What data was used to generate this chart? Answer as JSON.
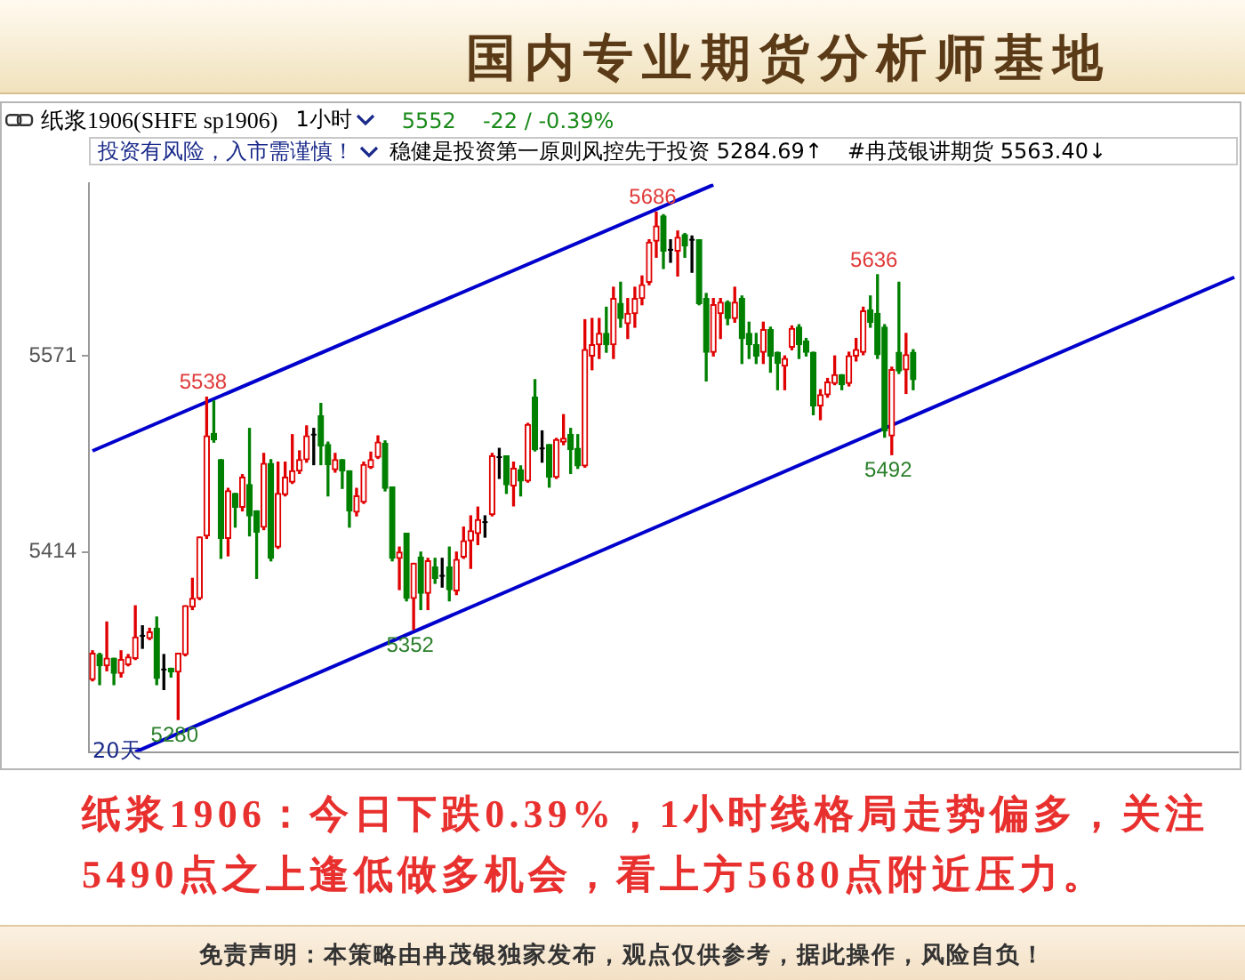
{
  "chart_data": {
    "type": "candlestick",
    "title": "国内专业期货分析师基地",
    "subtitle": "纸浆1906(SHFE sp1906)",
    "categories": [
      null,
      null,
      null,
      null,
      null,
      null,
      null,
      null,
      null,
      null,
      null,
      null,
      null,
      null,
      null,
      null,
      null,
      null,
      null,
      null,
      null,
      null,
      null,
      null,
      null,
      null,
      null,
      null,
      null,
      null,
      null,
      null,
      null,
      null,
      null,
      null,
      null,
      null,
      null,
      null,
      null,
      null,
      null,
      null,
      null,
      null,
      null,
      null,
      null,
      null,
      null,
      null,
      null,
      null,
      null,
      null,
      null,
      null,
      null,
      null,
      null,
      null,
      null,
      null,
      null,
      null,
      null,
      null,
      null,
      null,
      null,
      null,
      null,
      null,
      null,
      null,
      null,
      null,
      null,
      null,
      null,
      null,
      null,
      null,
      null,
      null,
      null,
      null,
      null,
      null,
      null,
      null,
      null,
      null,
      null,
      null,
      null,
      null,
      null,
      null,
      null,
      null,
      null,
      null,
      null,
      null,
      null,
      null,
      null,
      null,
      null,
      null,
      null,
      null,
      null,
      null,
      null,
      null,
      null,
      null,
      null,
      null,
      null,
      null,
      null,
      null,
      null,
      null,
      null,
      null,
      null,
      null,
      null,
      null,
      null,
      null,
      null,
      null,
      null,
      null,
      null,
      null,
      null,
      null,
      null,
      null,
      null,
      null,
      null,
      null,
      null,
      null,
      null,
      null,
      null,
      null,
      null,
      null,
      null,
      null,
      null
    ],
    "ohlc": [
      [
        5312,
        5335,
        5311,
        5333
      ],
      [
        5332,
        5333,
        5308,
        5323
      ],
      [
        5323,
        5358,
        5319,
        5329
      ],
      [
        5329,
        5329,
        5308,
        5317
      ],
      [
        5317,
        5335,
        5314,
        5328
      ],
      [
        5324,
        5332,
        5323,
        5330
      ],
      [
        5329,
        5371,
        5328,
        5346
      ],
      [
        5347,
        5355,
        5337,
        5347
      ],
      [
        5345,
        5353,
        5344,
        5350
      ],
      [
        5353,
        5362,
        5308,
        5313
      ],
      [
        5320,
        5332,
        5304,
        5320
      ],
      [
        5321,
        5321,
        5314,
        5318
      ],
      [
        5318,
        5333,
        5280,
        5333
      ],
      [
        5332,
        5371,
        5331,
        5371
      ],
      [
        5370,
        5393,
        5368,
        5377
      ],
      [
        5377,
        5426,
        5376,
        5426
      ],
      [
        5427,
        5538,
        5425,
        5507
      ],
      [
        5509,
        5535,
        5502,
        5504
      ],
      [
        5488,
        5488,
        5409,
        5425
      ],
      [
        5425,
        5465,
        5411,
        5463
      ],
      [
        5461,
        5461,
        5434,
        5450
      ],
      [
        5450,
        5476,
        5447,
        5474
      ],
      [
        5468,
        5513,
        5427,
        5443
      ],
      [
        5447,
        5447,
        5393,
        5430
      ],
      [
        5434,
        5493,
        5432,
        5485
      ],
      [
        5485,
        5488,
        5407,
        5409
      ],
      [
        5418,
        5486,
        5417,
        5461
      ],
      [
        5460,
        5486,
        5459,
        5474
      ],
      [
        5470,
        5508,
        5469,
        5479
      ],
      [
        5479,
        5495,
        5477,
        5488
      ],
      [
        5488,
        5515,
        5486,
        5507
      ],
      [
        5508,
        5513,
        5484,
        5508
      ],
      [
        5523,
        5533,
        5484,
        5499
      ],
      [
        5500,
        5502,
        5459,
        5484
      ],
      [
        5480,
        5493,
        5478,
        5488
      ],
      [
        5488,
        5488,
        5465,
        5479
      ],
      [
        5479,
        5479,
        5434,
        5447
      ],
      [
        5446,
        5465,
        5443,
        5459
      ],
      [
        5454,
        5486,
        5453,
        5484
      ],
      [
        5482,
        5494,
        5481,
        5488
      ],
      [
        5490,
        5507,
        5489,
        5502
      ],
      [
        5501,
        5503,
        5463,
        5465
      ],
      [
        5466,
        5466,
        5407,
        5409
      ],
      [
        5409,
        5418,
        5384,
        5414
      ],
      [
        5429,
        5429,
        5375,
        5377
      ],
      [
        5377,
        5405,
        5352,
        5405
      ],
      [
        5410,
        5414,
        5368,
        5381
      ],
      [
        5381,
        5409,
        5368,
        5407
      ],
      [
        5402,
        5409,
        5389,
        5393
      ],
      [
        5395,
        5409,
        5386,
        5395
      ],
      [
        5402,
        5418,
        5375,
        5384
      ],
      [
        5383,
        5414,
        5380,
        5408
      ],
      [
        5410,
        5434,
        5409,
        5423
      ],
      [
        5423,
        5443,
        5401,
        5431
      ],
      [
        5429,
        5450,
        5420,
        5440
      ],
      [
        5438,
        5443,
        5426,
        5438
      ],
      [
        5444,
        5493,
        5443,
        5491
      ],
      [
        5490,
        5497,
        5473,
        5490
      ],
      [
        5491,
        5491,
        5461,
        5468
      ],
      [
        5467,
        5486,
        5451,
        5481
      ],
      [
        5480,
        5483,
        5459,
        5471
      ],
      [
        5471,
        5517,
        5470,
        5516
      ],
      [
        5538,
        5552,
        5495,
        5496
      ],
      [
        5497,
        5511,
        5486,
        5497
      ],
      [
        5500,
        5500,
        5466,
        5474
      ],
      [
        5474,
        5505,
        5473,
        5504
      ],
      [
        5502,
        5524,
        5500,
        5505
      ],
      [
        5508,
        5513,
        5477,
        5496
      ],
      [
        5497,
        5508,
        5481,
        5483
      ],
      [
        5483,
        5600,
        5482,
        5576
      ],
      [
        5571,
        5601,
        5560,
        5580
      ],
      [
        5580,
        5601,
        5569,
        5589
      ],
      [
        5589,
        5610,
        5574,
        5580
      ],
      [
        5580,
        5626,
        5569,
        5617
      ],
      [
        5613,
        5630,
        5594,
        5601
      ],
      [
        5597,
        5617,
        5585,
        5605
      ],
      [
        5605,
        5626,
        5594,
        5617
      ],
      [
        5617,
        5635,
        5612,
        5628
      ],
      [
        5630,
        5664,
        5628,
        5662
      ],
      [
        5663,
        5686,
        5650,
        5675
      ],
      [
        5683,
        5684,
        5641,
        5655
      ],
      [
        5656,
        5664,
        5646,
        5656
      ],
      [
        5655,
        5671,
        5635,
        5666
      ],
      [
        5668,
        5669,
        5650,
        5659
      ],
      [
        5664,
        5667,
        5638,
        5664
      ],
      [
        5664,
        5664,
        5612,
        5613
      ],
      [
        5617,
        5621,
        5551,
        5574
      ],
      [
        5574,
        5617,
        5571,
        5612
      ],
      [
        5605,
        5617,
        5585,
        5614
      ],
      [
        5614,
        5615,
        5596,
        5601
      ],
      [
        5601,
        5626,
        5598,
        5614
      ],
      [
        5617,
        5619,
        5565,
        5585
      ],
      [
        5589,
        5598,
        5569,
        5580
      ],
      [
        5580,
        5589,
        5565,
        5571
      ],
      [
        5574,
        5598,
        5565,
        5592
      ],
      [
        5592,
        5594,
        5558,
        5571
      ],
      [
        5574,
        5574,
        5544,
        5565
      ],
      [
        5563,
        5571,
        5544,
        5569
      ],
      [
        5578,
        5595,
        5576,
        5593
      ],
      [
        5594,
        5596,
        5569,
        5580
      ],
      [
        5583,
        5585,
        5571,
        5574
      ],
      [
        5574,
        5574,
        5524,
        5531
      ],
      [
        5531,
        5544,
        5520,
        5540
      ],
      [
        5540,
        5553,
        5538,
        5550
      ],
      [
        5549,
        5571,
        5548,
        5556
      ],
      [
        5556,
        5556,
        5544,
        5548
      ],
      [
        5549,
        5574,
        5547,
        5571
      ],
      [
        5571,
        5585,
        5567,
        5576
      ],
      [
        5574,
        5610,
        5572,
        5607
      ],
      [
        5608,
        5619,
        5594,
        5598
      ],
      [
        5605,
        5636,
        5569,
        5572
      ],
      [
        5594,
        5596,
        5506,
        5511
      ],
      [
        5507,
        5562,
        5492,
        5560
      ],
      [
        5574,
        5630,
        5557,
        5559
      ],
      [
        5560,
        5589,
        5541,
        5572
      ],
      [
        5574,
        5576,
        5544,
        5552
      ],
      null,
      null,
      null,
      null,
      null,
      null,
      null,
      null,
      null,
      null,
      null,
      null,
      null,
      null,
      null,
      null,
      null,
      null,
      null,
      null,
      null,
      null,
      null,
      null,
      null,
      null,
      null,
      null,
      null,
      null,
      null,
      null,
      null,
      null,
      null,
      null,
      null,
      null,
      null,
      null,
      null,
      null,
      null,
      null,
      null
    ],
    "colors": [
      "#e00000",
      "#008000",
      "#e00000",
      "#008000",
      "#e00000",
      "#e00000",
      "#e00000",
      "#000000",
      "#e00000",
      "#008000",
      "#000000",
      "#008000",
      "#e00000",
      "#e00000",
      "#e00000",
      "#e00000",
      "#e00000",
      "#008000",
      "#008000",
      "#e00000",
      "#008000",
      "#e00000",
      "#008000",
      "#008000",
      "#e00000",
      "#008000",
      "#e00000",
      "#e00000",
      "#e00000",
      "#e00000",
      "#e00000",
      "#000000",
      "#008000",
      "#008000",
      "#e00000",
      "#008000",
      "#008000",
      "#e00000",
      "#e00000",
      "#e00000",
      "#e00000",
      "#008000",
      "#008000",
      "#e00000",
      "#008000",
      "#e00000",
      "#008000",
      "#e00000",
      "#008000",
      "#000000",
      "#008000",
      "#e00000",
      "#e00000",
      "#e00000",
      "#e00000",
      "#000000",
      "#e00000",
      "#000000",
      "#008000",
      "#e00000",
      "#008000",
      "#e00000",
      "#008000",
      "#000000",
      "#008000",
      "#e00000",
      "#e00000",
      "#008000",
      "#008000",
      "#e00000",
      "#e00000",
      "#e00000",
      "#008000",
      "#e00000",
      "#008000",
      "#e00000",
      "#e00000",
      "#e00000",
      "#e00000",
      "#e00000",
      "#008000",
      "#000000",
      "#e00000",
      "#008000",
      "#000000",
      "#008000",
      "#008000",
      "#e00000",
      "#e00000",
      "#008000",
      "#e00000",
      "#008000",
      "#008000",
      "#008000",
      "#e00000",
      "#008000",
      "#008000",
      "#e00000",
      "#e00000",
      "#008000",
      "#008000",
      "#008000",
      "#e00000",
      "#e00000",
      "#e00000",
      "#008000",
      "#e00000",
      "#e00000",
      "#e00000",
      "#008000",
      "#008000",
      "#008000",
      "#e00000",
      "#008000",
      "#e00000",
      "#008000",
      null,
      null,
      null,
      null,
      null,
      null,
      null,
      null,
      null,
      null,
      null,
      null,
      null,
      null,
      null,
      null,
      null,
      null,
      null,
      null,
      null,
      null,
      null,
      null,
      null,
      null,
      null,
      null,
      null,
      null,
      null,
      null,
      null,
      null,
      null,
      null,
      null,
      null,
      null,
      null,
      null,
      null,
      null,
      null,
      null
    ],
    "series": [
      {
        "type": "line",
        "color": "#0000cc",
        "values": [
          5495,
          null,
          null,
          null,
          null,
          null,
          null,
          null,
          null,
          null,
          null,
          null,
          null,
          null,
          null,
          null,
          null,
          null,
          null,
          null,
          null,
          null,
          null,
          null,
          null,
          null,
          null,
          null,
          null,
          null,
          null,
          null,
          null,
          null,
          null,
          null,
          null,
          null,
          null,
          null,
          null,
          null,
          null,
          null,
          null,
          null,
          null,
          null,
          null,
          null,
          null,
          null,
          null,
          null,
          null,
          null,
          null,
          null,
          null,
          null,
          null,
          null,
          null,
          null,
          null,
          null,
          null,
          null,
          null,
          null,
          null,
          null,
          null,
          null,
          null,
          null,
          null,
          null,
          null,
          null,
          null,
          null,
          null,
          null,
          null,
          null,
          null,
          5708,
          null,
          null,
          null,
          null,
          null,
          null,
          null,
          null,
          null,
          null,
          null,
          null,
          null,
          null,
          null,
          null,
          null,
          null,
          null,
          null,
          null,
          null,
          null,
          null,
          null,
          null,
          null,
          null,
          null,
          null,
          null,
          null,
          null,
          null,
          null,
          null,
          null,
          null,
          null,
          null,
          null,
          null,
          null,
          null,
          null,
          null,
          null,
          null,
          null,
          null,
          null,
          null,
          null,
          null,
          null,
          null,
          null,
          null,
          null,
          null,
          null,
          null,
          null,
          null,
          null,
          null,
          null,
          null,
          null,
          null,
          null,
          null,
          null
        ]
      },
      {
        "type": "line",
        "color": "#0000cc",
        "values": [
          null,
          null,
          null,
          null,
          null,
          null,
          5254,
          null,
          null,
          null,
          null,
          null,
          null,
          null,
          null,
          null,
          null,
          null,
          null,
          null,
          null,
          null,
          null,
          null,
          null,
          null,
          null,
          null,
          null,
          null,
          null,
          null,
          null,
          null,
          null,
          null,
          null,
          null,
          null,
          null,
          null,
          null,
          null,
          null,
          null,
          null,
          null,
          null,
          null,
          null,
          null,
          null,
          null,
          null,
          null,
          null,
          null,
          null,
          null,
          null,
          null,
          null,
          null,
          null,
          null,
          null,
          null,
          null,
          null,
          null,
          null,
          null,
          null,
          null,
          null,
          null,
          null,
          null,
          null,
          null,
          null,
          null,
          null,
          null,
          null,
          null,
          null,
          null,
          null,
          null,
          null,
          null,
          null,
          null,
          null,
          null,
          null,
          null,
          null,
          null,
          null,
          null,
          null,
          null,
          null,
          null,
          null,
          null,
          null,
          null,
          null,
          null,
          null,
          null,
          null,
          null,
          null,
          null,
          null,
          null,
          null,
          null,
          null,
          null,
          null,
          null,
          null,
          null,
          null,
          null,
          null,
          null,
          null,
          null,
          null,
          null,
          null,
          null,
          null,
          null,
          null,
          null,
          null,
          null,
          null,
          null,
          null,
          null,
          null,
          null,
          null,
          null,
          null,
          null,
          null,
          null,
          null,
          null,
          null,
          null,
          5634
        ]
      }
    ],
    "ylim": [
      5254,
      5709
    ],
    "yticks": [
      5414,
      5571
    ],
    "tick_labels": "y",
    "annotations": [
      "1小时",
      "5552",
      "-22 / -0.39%",
      "投资有风险，入市需谨慎！",
      "稳健是投资第一原则风控先于投资 5284.69↑",
      "#冉茂银讲期货 5563.40↓",
      "20天",
      "纸浆1906：今日下跌0.39%，1小时线格局走势偏多，关注5490点之上逢低做多机会，看上方5680点附近压力。",
      "免责声明：本策略由冉茂银独家发布，观点仅供参考，据此操作，风险自负！",
      {
        "text": "5538",
        "y": 5538
      },
      {
        "text": "5686",
        "y": 5686
      },
      {
        "text": "5636",
        "y": 5636
      },
      {
        "text": "5280",
        "y": 5280
      },
      {
        "text": "5352",
        "y": 5352
      },
      {
        "text": "5492",
        "y": 5492
      }
    ]
  }
}
